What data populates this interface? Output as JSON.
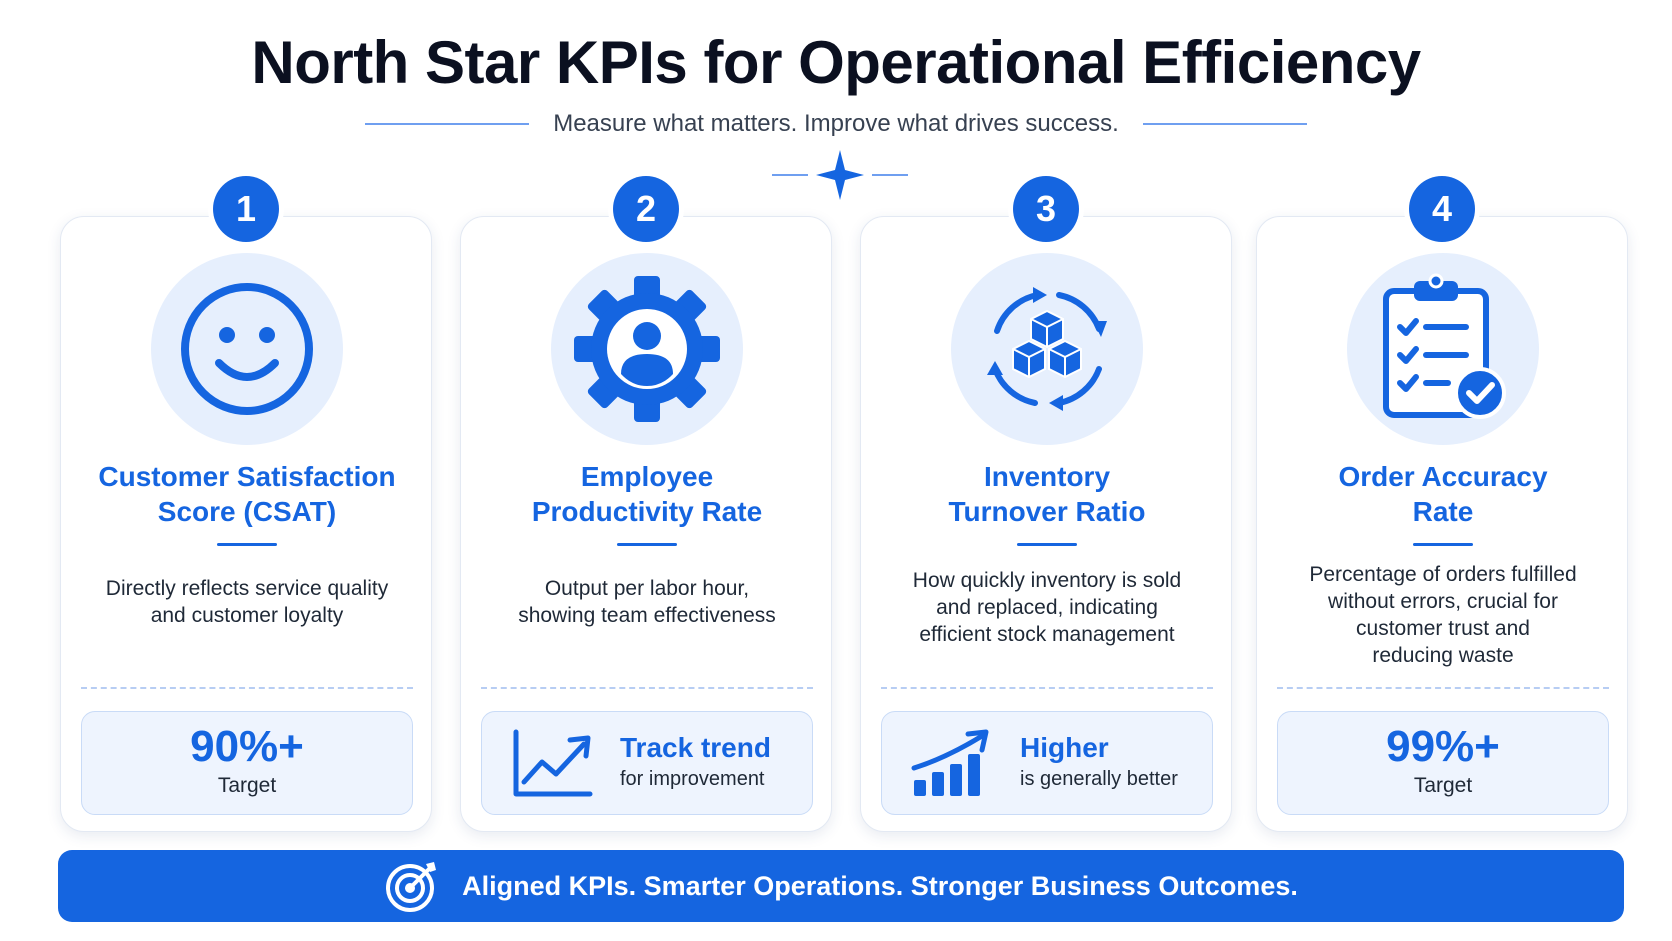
{
  "header": {
    "title": "North Star KPIs for Operational Efficiency",
    "subtitle": "Measure what matters. Improve what drives success."
  },
  "cards": [
    {
      "number": "1",
      "icon": "smiley-face-icon",
      "title_line1": "Customer Satisfaction",
      "title_line2": "Score (CSAT)",
      "desc_lines": [
        "Directly reflects service quality",
        "and customer loyalty"
      ],
      "stat": {
        "value": "90%+",
        "label": "Target"
      }
    },
    {
      "number": "2",
      "icon": "gear-person-icon",
      "title_line1": "Employee",
      "title_line2": "Productivity Rate",
      "desc_lines": [
        "Output per labor hour,",
        "showing team effectiveness"
      ],
      "stat": {
        "icon": "trend-line-icon",
        "head": "Track trend",
        "sub": "for improvement"
      }
    },
    {
      "number": "3",
      "icon": "inventory-cycle-icon",
      "title_line1": "Inventory",
      "title_line2": "Turnover Ratio",
      "desc_lines": [
        "How quickly inventory is sold",
        "and replaced, indicating",
        "efficient stock management"
      ],
      "stat": {
        "icon": "bar-growth-icon",
        "head": "Higher",
        "sub": "is generally better"
      }
    },
    {
      "number": "4",
      "icon": "clipboard-check-icon",
      "title_line1": "Order Accuracy",
      "title_line2": "Rate",
      "desc_lines": [
        "Percentage of orders fulfilled",
        "without errors, crucial for",
        "customer trust and",
        "reducing waste"
      ],
      "stat": {
        "value": "99%+",
        "label": "Target"
      }
    }
  ],
  "footer": {
    "icon": "target-icon",
    "text": "Aligned KPIs. Smarter Operations. Stronger Business Outcomes."
  },
  "colors": {
    "accent": "#1565e0",
    "icon_bg": "#e6effd",
    "stat_bg": "#eef4fe"
  }
}
